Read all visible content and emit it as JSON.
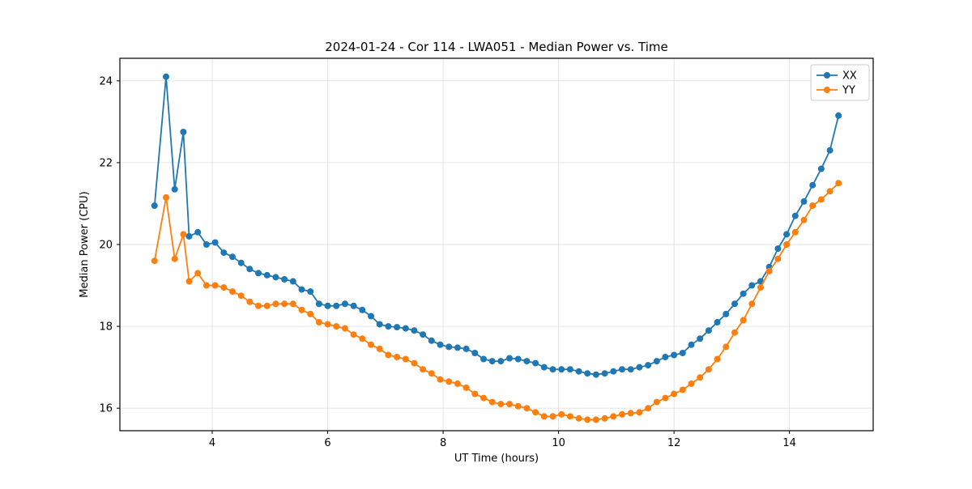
{
  "figure": {
    "background": "#ffffff",
    "spine_color": "#000000",
    "grid_color": "#e0e0e0"
  },
  "chart_data": {
    "type": "line",
    "title": "2024-01-24 - Cor 114 - LWA051 - Median Power vs. Time",
    "xlabel": "UT Time (hours)",
    "ylabel": "Median Power (CPU)",
    "xlim": [
      2.4,
      15.45
    ],
    "ylim": [
      15.45,
      24.55
    ],
    "xticks": [
      4,
      6,
      8,
      10,
      12,
      14
    ],
    "yticks": [
      16,
      18,
      20,
      22,
      24
    ],
    "grid": true,
    "legend_position": "upper right",
    "x": [
      3.0,
      3.2,
      3.35,
      3.5,
      3.6,
      3.75,
      3.9,
      4.05,
      4.2,
      4.35,
      4.5,
      4.65,
      4.8,
      4.95,
      5.1,
      5.25,
      5.4,
      5.55,
      5.7,
      5.85,
      6.0,
      6.15,
      6.3,
      6.45,
      6.6,
      6.75,
      6.9,
      7.05,
      7.2,
      7.35,
      7.5,
      7.65,
      7.8,
      7.95,
      8.1,
      8.25,
      8.4,
      8.55,
      8.7,
      8.85,
      9.0,
      9.15,
      9.3,
      9.45,
      9.6,
      9.75,
      9.9,
      10.05,
      10.2,
      10.35,
      10.5,
      10.65,
      10.8,
      10.95,
      11.1,
      11.25,
      11.4,
      11.55,
      11.7,
      11.85,
      12.0,
      12.15,
      12.3,
      12.45,
      12.6,
      12.75,
      12.9,
      13.05,
      13.2,
      13.35,
      13.5,
      13.65,
      13.8,
      13.95,
      14.1,
      14.25,
      14.4,
      14.55,
      14.7,
      14.85
    ],
    "series": [
      {
        "name": "XX",
        "color": "#1f77b4",
        "values": [
          20.95,
          24.1,
          21.35,
          22.75,
          20.2,
          20.3,
          20.0,
          20.05,
          19.8,
          19.7,
          19.55,
          19.4,
          19.3,
          19.25,
          19.2,
          19.15,
          19.1,
          18.9,
          18.85,
          18.55,
          18.5,
          18.5,
          18.55,
          18.5,
          18.4,
          18.25,
          18.05,
          18.0,
          17.98,
          17.95,
          17.9,
          17.8,
          17.65,
          17.55,
          17.5,
          17.48,
          17.45,
          17.35,
          17.2,
          17.15,
          17.15,
          17.22,
          17.2,
          17.15,
          17.1,
          17.0,
          16.95,
          16.95,
          16.95,
          16.9,
          16.85,
          16.82,
          16.85,
          16.9,
          16.95,
          16.95,
          17.0,
          17.05,
          17.15,
          17.25,
          17.3,
          17.35,
          17.55,
          17.7,
          17.9,
          18.1,
          18.3,
          18.55,
          18.8,
          19.0,
          19.1,
          19.45,
          19.9,
          20.25,
          20.7,
          21.05,
          21.45,
          21.85,
          22.3,
          23.15
        ]
      },
      {
        "name": "YY",
        "color": "#ff7f0e",
        "values": [
          19.6,
          21.15,
          19.65,
          20.25,
          19.1,
          19.3,
          19.0,
          19.0,
          18.95,
          18.85,
          18.75,
          18.6,
          18.5,
          18.5,
          18.55,
          18.55,
          18.55,
          18.4,
          18.3,
          18.1,
          18.05,
          18.0,
          17.95,
          17.8,
          17.7,
          17.55,
          17.45,
          17.3,
          17.25,
          17.2,
          17.1,
          16.95,
          16.85,
          16.7,
          16.65,
          16.6,
          16.5,
          16.35,
          16.25,
          16.15,
          16.1,
          16.1,
          16.05,
          16.0,
          15.9,
          15.8,
          15.8,
          15.85,
          15.8,
          15.75,
          15.72,
          15.72,
          15.75,
          15.8,
          15.85,
          15.88,
          15.9,
          16.0,
          16.15,
          16.25,
          16.35,
          16.45,
          16.6,
          16.75,
          16.95,
          17.2,
          17.5,
          17.85,
          18.15,
          18.55,
          18.95,
          19.35,
          19.65,
          20.0,
          20.3,
          20.6,
          20.95,
          21.1,
          21.3,
          21.5
        ]
      }
    ]
  }
}
